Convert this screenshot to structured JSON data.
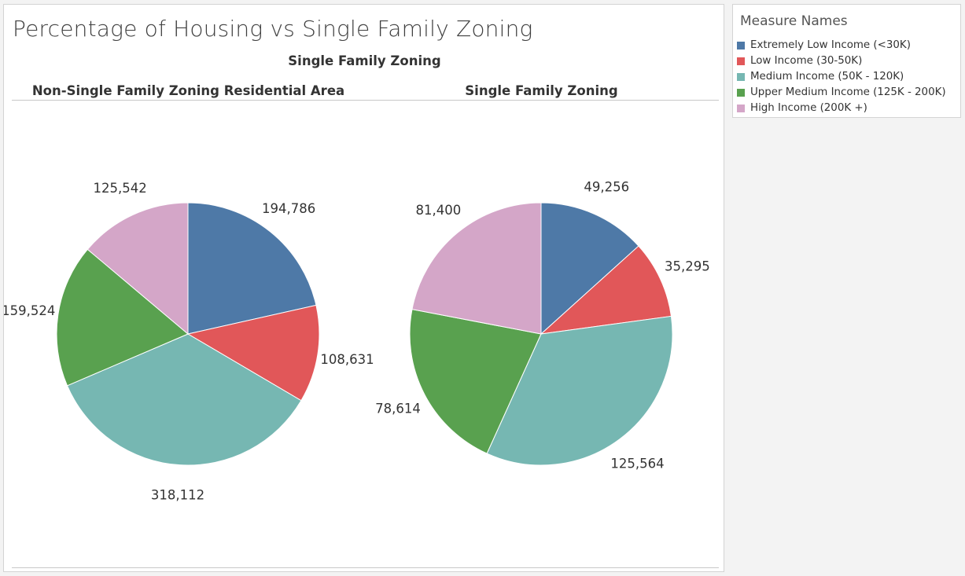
{
  "title": "Percentage of Housing vs Single Family Zoning",
  "column_group_header": "Single Family Zoning",
  "legend": {
    "title": "Measure Names",
    "items": [
      {
        "label": "Extremely Low Income (<30K)",
        "color": "#4e79a7"
      },
      {
        "label": "Low Income (30-50K)",
        "color": "#e15759"
      },
      {
        "label": "Medium Income (50K - 120K)",
        "color": "#76b7b2"
      },
      {
        "label": "Upper Medium Income (125K - 200K)",
        "color": "#59a14f"
      },
      {
        "label": "High Income (200K +)",
        "color": "#d4a6c8"
      }
    ]
  },
  "chart_data": [
    {
      "type": "pie",
      "title": "Non-Single Family Zoning Residential Area",
      "categories": [
        "Extremely Low Income (<30K)",
        "Low Income (30-50K)",
        "Medium Income (50K - 120K)",
        "Upper Medium Income (125K - 200K)",
        "High Income (200K +)"
      ],
      "values": [
        194786,
        108631,
        318112,
        159524,
        125542
      ],
      "labels": [
        "194,786",
        "108,631",
        "318,112",
        "159,524",
        "125,542"
      ]
    },
    {
      "type": "pie",
      "title": "Single Family Zoning",
      "categories": [
        "Extremely Low Income (<30K)",
        "Low Income (30-50K)",
        "Medium Income (50K - 120K)",
        "Upper Medium Income (125K - 200K)",
        "High Income (200K +)"
      ],
      "values": [
        49256,
        35295,
        125564,
        78614,
        81400
      ],
      "labels": [
        "49,256",
        "35,295",
        "125,564",
        "78,614",
        "81,400"
      ]
    }
  ]
}
